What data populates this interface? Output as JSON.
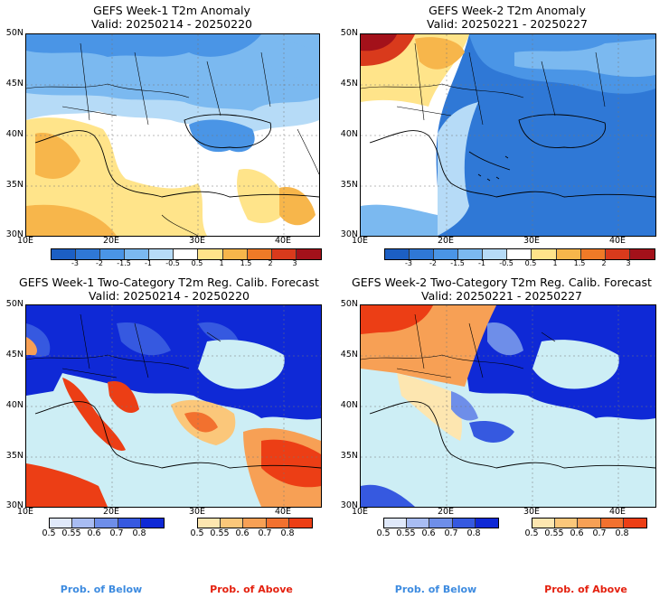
{
  "panels": {
    "tl": {
      "title": "GEFS Week-1 T2m Anomaly",
      "valid": "Valid: 20250214 - 20250220"
    },
    "tr": {
      "title": "GEFS Week-2 T2m Anomaly",
      "valid": "Valid: 20250221 - 20250227"
    },
    "bl": {
      "title": "GEFS Week-1 Two-Category T2m Reg. Calib. Forecast",
      "valid": "Valid: 20250214 - 20250220"
    },
    "br": {
      "title": "GEFS Week-2 Two-Category T2m Reg. Calib. Forecast",
      "valid": "Valid: 20250221 - 20250227"
    }
  },
  "lat_labels": [
    "50N",
    "45N",
    "40N",
    "35N",
    "30N"
  ],
  "lon_labels": [
    "10E",
    "20E",
    "30E",
    "40E"
  ],
  "anomaly_colorbar": {
    "labels": [
      "-3",
      "-2",
      "-1.5",
      "-1",
      "-0.5",
      "0.5",
      "1",
      "1.5",
      "2",
      "3"
    ],
    "colors": [
      "#1c5fc4",
      "#2f78d6",
      "#4a95e6",
      "#7bb9f0",
      "#b6dbf7",
      "#ffffff",
      "#ffe48a",
      "#f7b64b",
      "#ef7a27",
      "#d93a1c",
      "#a3111a"
    ]
  },
  "prob_below": {
    "labels": [
      "0.5",
      "0.55",
      "0.6",
      "0.7",
      "0.8"
    ],
    "colors": [
      "#dfe8fa",
      "#a8bcf2",
      "#6e8ee9",
      "#3659e0",
      "#0f29d6"
    ],
    "caption": "Prob. of Below",
    "caption_color": "#3d8be0"
  },
  "prob_above": {
    "labels": [
      "0.5",
      "0.55",
      "0.6",
      "0.7",
      "0.8"
    ],
    "colors": [
      "#fde6b0",
      "#fbc77a",
      "#f7a055",
      "#f2712f",
      "#ec3e15"
    ],
    "caption": "Prob. of Above",
    "caption_color": "#e4200e"
  },
  "colors": {
    "sea_prob": "#cdeef5",
    "land_white": "#ffffff"
  }
}
